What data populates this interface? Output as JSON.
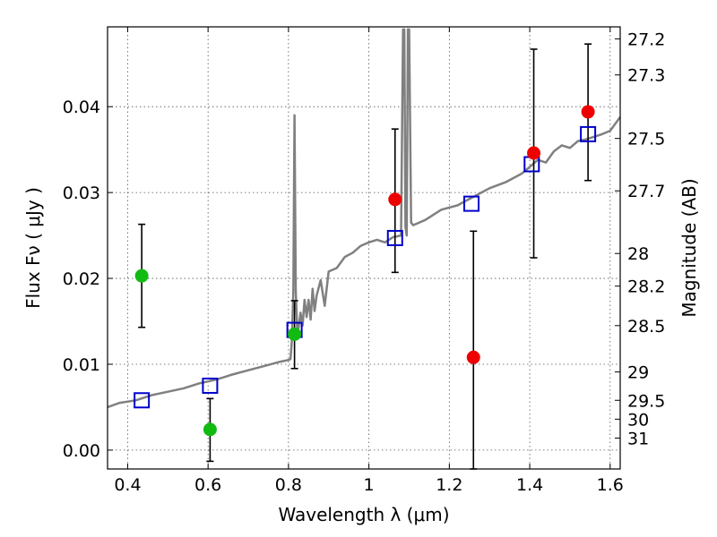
{
  "chart_data": {
    "type": "scatter",
    "xlabel": "Wavelength  λ (μm)",
    "ylabel_left": "Flux  Fν  ( μJy )",
    "ylabel_right": "Magnitude (AB)",
    "xlim": [
      0.35,
      1.625
    ],
    "ylim": [
      -0.0022,
      0.0493
    ],
    "grid": true,
    "x_ticks": [
      0.4,
      0.6,
      0.8,
      1.0,
      1.2,
      1.4,
      1.6
    ],
    "x_tick_labels": [
      "0.4",
      "0.6",
      "0.8",
      "1",
      "1.2",
      "1.4",
      "1.6"
    ],
    "y_ticks": [
      0.0,
      0.01,
      0.02,
      0.03,
      0.04
    ],
    "y_tick_labels": [
      "0.00",
      "0.01",
      "0.02",
      "0.03",
      "0.04"
    ],
    "right_ticks": [
      {
        "label": "27.2",
        "flux": 0.0479
      },
      {
        "label": "27.3",
        "flux": 0.0437
      },
      {
        "label": "27.5",
        "flux": 0.0363
      },
      {
        "label": "27.7",
        "flux": 0.0302
      },
      {
        "label": "28",
        "flux": 0.0229
      },
      {
        "label": "28.2",
        "flux": 0.0191
      },
      {
        "label": "28.5",
        "flux": 0.0145
      },
      {
        "label": "29",
        "flux": 0.0091
      },
      {
        "label": "29.5",
        "flux": 0.0058
      },
      {
        "label": "30",
        "flux": 0.0036
      },
      {
        "label": "31",
        "flux": 0.0014
      }
    ],
    "series": [
      {
        "kind": "line",
        "color": "#808080",
        "x": [
          0.35,
          0.38,
          0.42,
          0.46,
          0.5,
          0.54,
          0.58,
          0.62,
          0.66,
          0.7,
          0.74,
          0.78,
          0.8,
          0.805,
          0.808,
          0.812,
          0.815,
          0.818,
          0.822,
          0.826,
          0.83,
          0.835,
          0.84,
          0.845,
          0.85,
          0.855,
          0.86,
          0.865,
          0.87,
          0.88,
          0.89,
          0.9,
          0.92,
          0.94,
          0.96,
          0.98,
          1.0,
          1.02,
          1.04,
          1.06,
          1.08,
          1.085,
          1.088,
          1.091,
          1.094,
          1.097,
          1.1,
          1.105,
          1.11,
          1.14,
          1.18,
          1.22,
          1.26,
          1.3,
          1.34,
          1.38,
          1.4,
          1.42,
          1.44,
          1.46,
          1.48,
          1.5,
          1.52,
          1.54,
          1.56,
          1.58,
          1.6,
          1.625
        ],
        "y": [
          0.005,
          0.0055,
          0.0058,
          0.0064,
          0.0068,
          0.0072,
          0.0078,
          0.0082,
          0.0088,
          0.0093,
          0.0098,
          0.0103,
          0.0105,
          0.0106,
          0.0125,
          0.0185,
          0.039,
          0.0185,
          0.0135,
          0.0145,
          0.016,
          0.0145,
          0.0175,
          0.0155,
          0.0175,
          0.0152,
          0.0188,
          0.0162,
          0.018,
          0.0198,
          0.0168,
          0.0208,
          0.0212,
          0.0225,
          0.023,
          0.0238,
          0.0242,
          0.0245,
          0.0242,
          0.0248,
          0.025,
          0.049,
          0.049,
          0.026,
          0.025,
          0.049,
          0.049,
          0.0265,
          0.0262,
          0.0268,
          0.028,
          0.0285,
          0.0295,
          0.0305,
          0.0312,
          0.0322,
          0.033,
          0.0338,
          0.0335,
          0.0348,
          0.0355,
          0.0352,
          0.036,
          0.0362,
          0.0365,
          0.0368,
          0.0372,
          0.0388
        ]
      },
      {
        "kind": "open-squares",
        "color": "#0000cc",
        "x": [
          0.435,
          0.605,
          0.815,
          1.065,
          1.255,
          1.405,
          1.545
        ],
        "y": [
          0.0058,
          0.0075,
          0.014,
          0.0247,
          0.0287,
          0.0333,
          0.0368
        ]
      },
      {
        "kind": "filled-circles",
        "color": "#ee0000",
        "x": [
          1.065,
          1.26,
          1.41,
          1.545
        ],
        "y": [
          0.0292,
          0.0108,
          0.0346,
          0.0394
        ]
      },
      {
        "kind": "filled-circles",
        "color": "#11bb11",
        "x": [
          0.435,
          0.605,
          0.815
        ],
        "y": [
          0.0203,
          0.0024,
          0.0135
        ]
      },
      {
        "kind": "errorbars",
        "color": "#000000",
        "points": [
          {
            "x": 0.435,
            "lo": 0.0143,
            "hi": 0.0263
          },
          {
            "x": 0.605,
            "lo": -0.0013,
            "hi": 0.006
          },
          {
            "x": 0.815,
            "lo": 0.0095,
            "hi": 0.0174
          },
          {
            "x": 1.065,
            "lo": 0.0207,
            "hi": 0.0374
          },
          {
            "x": 1.26,
            "lo": -0.0022,
            "hi": 0.0255
          },
          {
            "x": 1.41,
            "lo": 0.0224,
            "hi": 0.0467
          },
          {
            "x": 1.545,
            "lo": 0.0314,
            "hi": 0.0473
          }
        ]
      }
    ]
  }
}
